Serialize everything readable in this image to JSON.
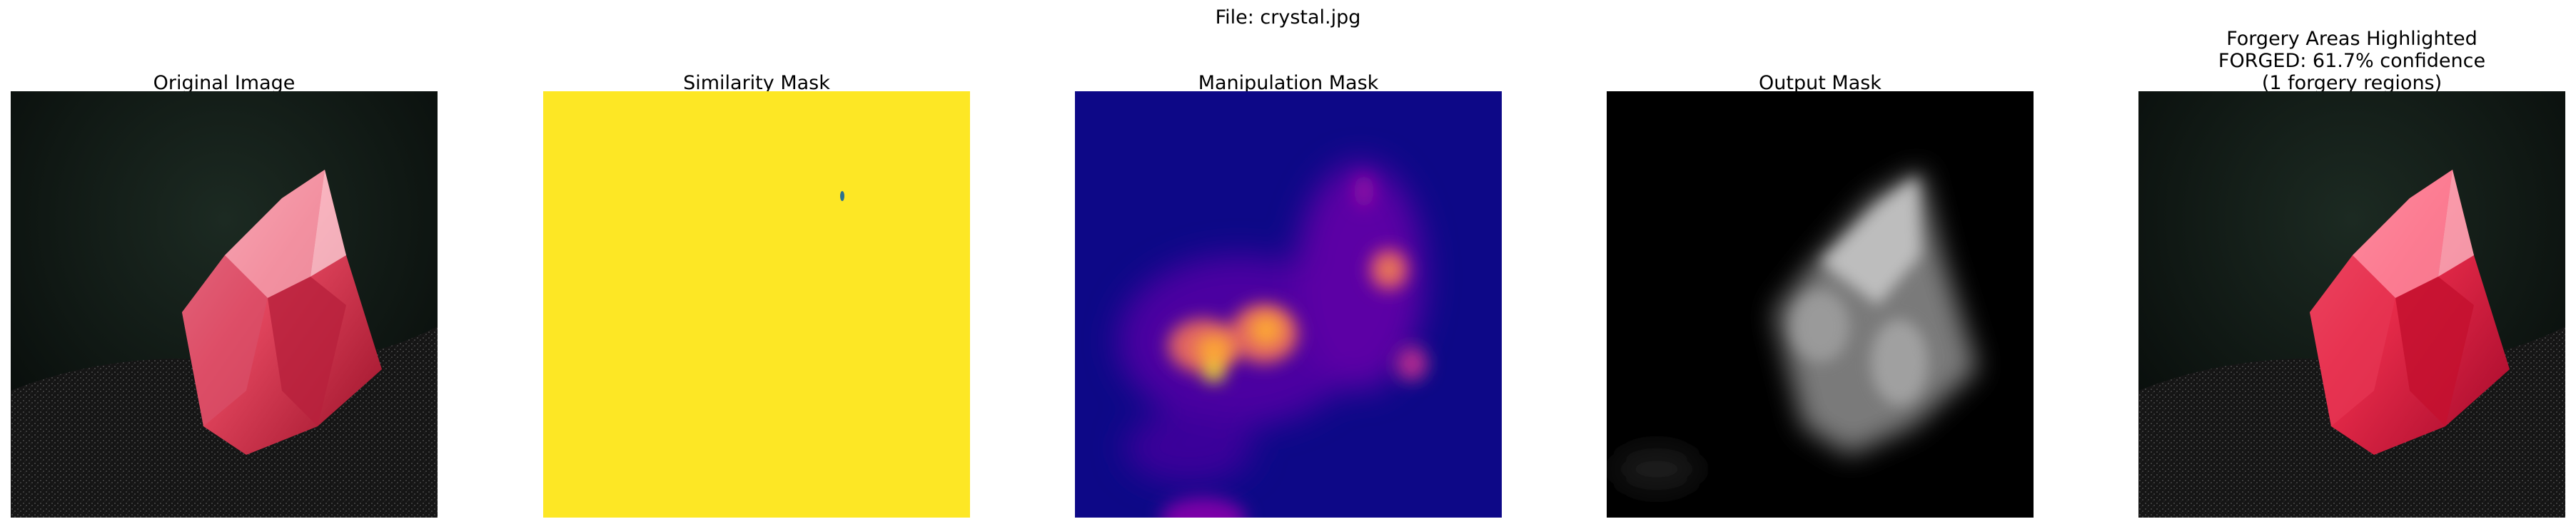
{
  "figure": {
    "suptitle": "File: crystal.jpg"
  },
  "panels": [
    {
      "title_lines": [
        "Original Image"
      ],
      "content": "original-image"
    },
    {
      "title_lines": [
        "Similarity Mask"
      ],
      "content": "similarity-mask"
    },
    {
      "title_lines": [
        "Manipulation Mask"
      ],
      "content": "manipulation-mask"
    },
    {
      "title_lines": [
        "Output Mask"
      ],
      "content": "output-mask"
    },
    {
      "title_lines": [
        "Forgery Areas Highlighted",
        "FORGED: 61.7% confidence",
        "(1 forgery regions)"
      ],
      "content": "forgery-highlight"
    }
  ],
  "colors": {
    "similarity_fill": "#fde725",
    "similarity_dot": "#2c728e",
    "manipulation_bg": "#0d0887",
    "manipulation_hot": "#f0f921",
    "crystal_red": "#e8344e",
    "crystal_highlight": "#ffd0d8",
    "sand_dark": "#1a1a1a",
    "output_bg": "#000000"
  }
}
